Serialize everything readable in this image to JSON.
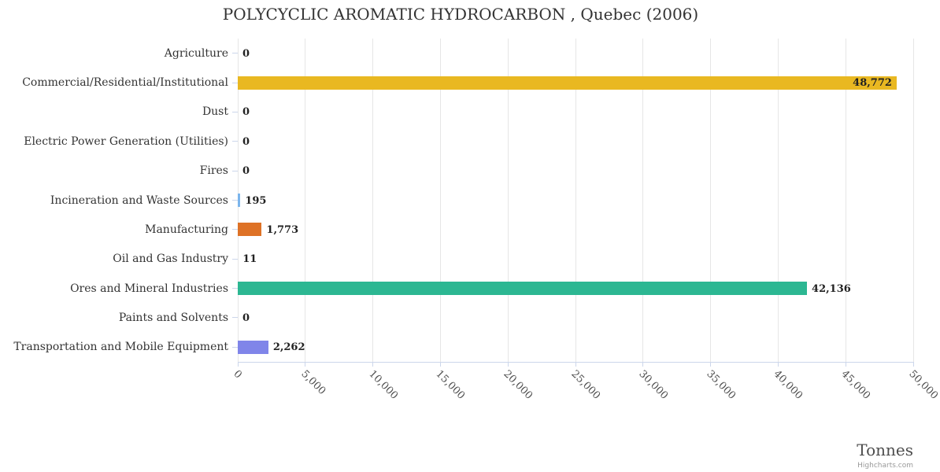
{
  "chart_data": {
    "type": "bar",
    "orientation": "horizontal",
    "title": "POLYCYCLIC AROMATIC HYDROCARBON , Quebec (2006)",
    "xlabel": "Tonnes",
    "xlim": [
      0,
      50000
    ],
    "x_ticks": [
      0,
      5000,
      10000,
      15000,
      20000,
      25000,
      30000,
      35000,
      40000,
      45000,
      50000
    ],
    "x_tick_labels": [
      "0",
      "5,000",
      "10,000",
      "15,000",
      "20,000",
      "25,000",
      "30,000",
      "35,000",
      "40,000",
      "45,000",
      "50,000"
    ],
    "grid": true,
    "legend": "none",
    "categories": [
      "Agriculture",
      "Commercial/Residential/Institutional",
      "Dust",
      "Electric Power Generation (Utilities)",
      "Fires",
      "Incineration and Waste Sources",
      "Manufacturing",
      "Oil and Gas Industry",
      "Ores and Mineral Industries",
      "Paints and Solvents",
      "Transportation and Mobile Equipment"
    ],
    "values": [
      0,
      48772,
      0,
      0,
      0,
      195,
      1773,
      11,
      42136,
      0,
      2262
    ],
    "value_labels": [
      "0",
      "48,772",
      "0",
      "0",
      "0",
      "195",
      "1,773",
      "11",
      "42,136",
      "0",
      "2,262"
    ],
    "bar_colors": [
      "#7cb5ec",
      "#e9b821",
      "#7cb5ec",
      "#7cb5ec",
      "#7cb5ec",
      "#7cb5ec",
      "#de7226",
      "#7cb5ec",
      "#2cb792",
      "#7cb5ec",
      "#8085e9"
    ],
    "gridline_color": "#e6e6e6",
    "axis_color": "#ccd6eb",
    "credit": "Highcharts.com"
  }
}
